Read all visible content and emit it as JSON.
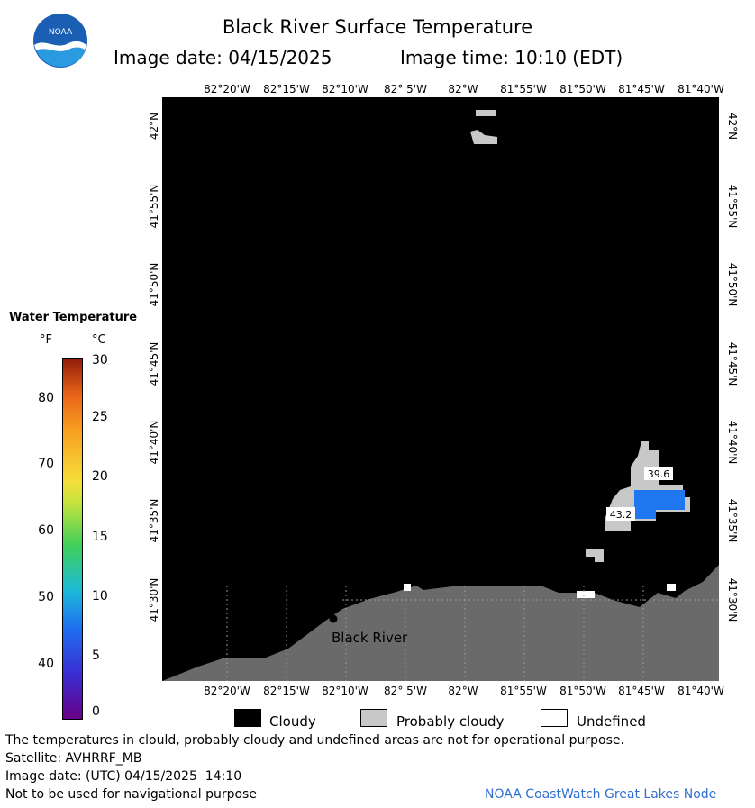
{
  "header": {
    "title": "Black River Surface Temperature",
    "image_date": "Image date: 04/15/2025",
    "image_time": "Image time: 10:10 (EDT)"
  },
  "logo": {
    "text": "NOAA"
  },
  "axes": {
    "lon_labels": [
      "82°20'W",
      "82°15'W",
      "82°10'W",
      "82° 5'W",
      "82°W",
      "81°55'W",
      "81°50'W",
      "81°45'W",
      "81°40'W"
    ],
    "lat_labels": [
      "42°N",
      "41°55'N",
      "41°50'N",
      "41°45'N",
      "41°40'N",
      "41°35'N",
      "41°30'N"
    ]
  },
  "map": {
    "place_label": "Black River",
    "temp_labels": [
      "39.6",
      "43.2"
    ],
    "colors": {
      "water_cloud": "#000000",
      "land": "#6a6a6a",
      "probably_cloudy": "#c8c8c8",
      "warm_water": "#1f78f0"
    }
  },
  "legend": {
    "title": "Water Temperature",
    "unit_f": "°F",
    "unit_c": "°C",
    "f_ticks": [
      "80",
      "70",
      "60",
      "50",
      "40"
    ],
    "c_ticks": [
      "30",
      "25",
      "20",
      "15",
      "10",
      "5",
      "0"
    ],
    "categories": [
      {
        "label": "Cloudy",
        "color": "#000000"
      },
      {
        "label": "Probably cloudy",
        "color": "#c8c8c8"
      },
      {
        "label": "Undefined",
        "color": "#ffffff"
      }
    ]
  },
  "footer": {
    "disclaimer": "The temperatures in clould, probably cloudy and undefined areas are not for operational purpose.",
    "satellite": "Satellite: AVHRRF_MB",
    "utc_date": "Image date: (UTC) 04/15/2025  14:10",
    "nav_warning": "Not to be used for navigational purpose",
    "source": "NOAA CoastWatch Great Lakes Node"
  }
}
